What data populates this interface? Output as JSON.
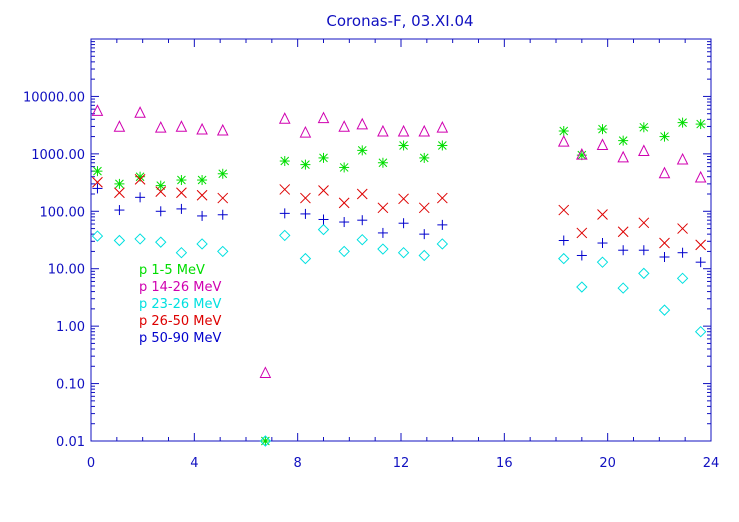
{
  "chart_data": {
    "type": "scatter",
    "title": "Coronas-F, 03.XI.04",
    "xlabel": "",
    "ylabel": "",
    "xlim": [
      0,
      24
    ],
    "ylim": [
      0.01,
      100000
    ],
    "yscale": "log",
    "grid": false,
    "legend_position": "left-middle",
    "colors": {
      "axis": "#1010c0",
      "title": "#1010c0"
    },
    "x_ticks": [
      {
        "value": 0,
        "label": "0"
      },
      {
        "value": 4,
        "label": "4"
      },
      {
        "value": 8,
        "label": "8"
      },
      {
        "value": 12,
        "label": "12"
      },
      {
        "value": 16,
        "label": "16"
      },
      {
        "value": 20,
        "label": "20"
      },
      {
        "value": 24,
        "label": "24"
      }
    ],
    "y_ticks": [
      {
        "value": 0.01,
        "label": "0.01"
      },
      {
        "value": 0.1,
        "label": "0.10"
      },
      {
        "value": 1,
        "label": "1.00"
      },
      {
        "value": 10,
        "label": "10.00"
      },
      {
        "value": 100,
        "label": "100.00"
      },
      {
        "value": 1000,
        "label": "1000.00"
      },
      {
        "value": 10000,
        "label": "10000.00"
      }
    ],
    "series": [
      {
        "name": "p 1-5 MeV",
        "color": "#00dd00",
        "marker": "asterisk",
        "x": [
          0.25,
          1.1,
          1.9,
          2.7,
          3.5,
          4.3,
          5.1,
          6.75,
          7.5,
          8.3,
          9.0,
          9.8,
          10.5,
          11.3,
          12.1,
          12.9,
          13.6,
          18.3,
          19.0,
          19.8,
          20.6,
          21.4,
          22.2,
          22.9,
          23.6
        ],
        "y": [
          500,
          300,
          400,
          280,
          350,
          350,
          450,
          0.01,
          750,
          650,
          850,
          580,
          1150,
          700,
          1400,
          850,
          1400,
          2500,
          950,
          2700,
          1700,
          2900,
          2000,
          3500,
          3300
        ]
      },
      {
        "name": "p 14-26 MeV",
        "color": "#d000b0",
        "marker": "triangle",
        "x": [
          0.25,
          1.1,
          1.9,
          2.7,
          3.5,
          4.3,
          5.1,
          6.75,
          7.5,
          8.3,
          9.0,
          9.8,
          10.5,
          11.3,
          12.1,
          12.9,
          13.6,
          18.3,
          19.0,
          19.8,
          20.6,
          21.4,
          22.2,
          22.9,
          23.6
        ],
        "y": [
          5500,
          2900,
          5100,
          2800,
          2900,
          2600,
          2500,
          0.15,
          4000,
          2300,
          4100,
          2900,
          3200,
          2400,
          2400,
          2400,
          2800,
          1600,
          950,
          1400,
          850,
          1100,
          450,
          780,
          380
        ]
      },
      {
        "name": "p 23-26 MeV",
        "color": "#00e0e0",
        "marker": "diamond",
        "x": [
          0.25,
          1.1,
          1.9,
          2.7,
          3.5,
          4.3,
          5.1,
          6.75,
          7.5,
          8.3,
          9.0,
          9.8,
          10.5,
          11.3,
          12.1,
          12.9,
          13.6,
          18.3,
          19.0,
          19.8,
          20.6,
          21.4,
          22.2,
          22.9,
          23.6
        ],
        "y": [
          37,
          31,
          33,
          29,
          19,
          27,
          20,
          0.01,
          38,
          15,
          48,
          20,
          32,
          22,
          19,
          17,
          27,
          15,
          4.8,
          13,
          4.6,
          8.3,
          1.9,
          6.8,
          0.8
        ]
      },
      {
        "name": "p 26-50 MeV",
        "color": "#dd0000",
        "marker": "x",
        "x": [
          0.25,
          1.1,
          1.9,
          2.7,
          3.5,
          4.3,
          5.1,
          7.5,
          8.3,
          9.0,
          9.8,
          10.5,
          11.3,
          12.1,
          12.9,
          13.6,
          18.3,
          19.0,
          19.8,
          20.6,
          21.4,
          22.2,
          22.9,
          23.6
        ],
        "y": [
          320,
          210,
          360,
          220,
          210,
          190,
          170,
          240,
          170,
          230,
          140,
          200,
          115,
          165,
          115,
          170,
          105,
          42,
          88,
          44,
          63,
          28,
          50,
          26
        ]
      },
      {
        "name": "p 50-90 MeV",
        "color": "#0000cc",
        "marker": "plus",
        "x": [
          0.25,
          1.1,
          1.9,
          2.7,
          3.5,
          4.3,
          5.1,
          7.5,
          8.3,
          9.0,
          9.8,
          10.5,
          11.3,
          12.1,
          12.9,
          13.6,
          18.3,
          19.0,
          19.8,
          20.6,
          21.4,
          22.2,
          22.9,
          23.6
        ],
        "y": [
          250,
          105,
          175,
          100,
          110,
          83,
          87,
          92,
          90,
          72,
          65,
          70,
          42,
          62,
          40,
          58,
          31,
          17,
          28,
          21,
          21,
          16,
          19,
          13
        ]
      }
    ]
  }
}
